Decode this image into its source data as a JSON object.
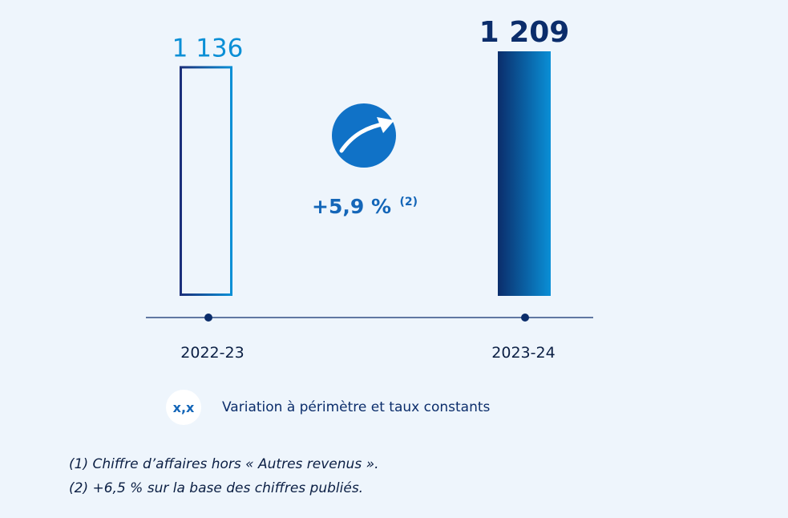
{
  "chart_data": {
    "type": "bar",
    "categories": [
      "2022-23",
      "2023-24"
    ],
    "values": [
      1136,
      1209
    ],
    "value_labels": [
      "1 136",
      "1 209"
    ],
    "ylim": [
      0,
      1209
    ],
    "grid": false,
    "variation": {
      "label": "+5,9 %",
      "note": "(2)",
      "icon": "trend-up-arrow-icon"
    },
    "legend": {
      "badge": "x,x",
      "text": "Variation à périmètre et taux constants"
    }
  },
  "footnotes": [
    "(1) Chiffre d’affaires hors « Autres revenus ».",
    "(2) +6,5 % sur la base des chiffres publiés."
  ],
  "colors": {
    "background": "#eef5fc",
    "bar_prev_dark": "#1b2f7a",
    "bar_prev_light": "#0a8fd6",
    "bar_curr_dark": "#0b2d6b",
    "bar_curr_light": "#0a8fd6",
    "variation_circle": "#1072c7"
  }
}
